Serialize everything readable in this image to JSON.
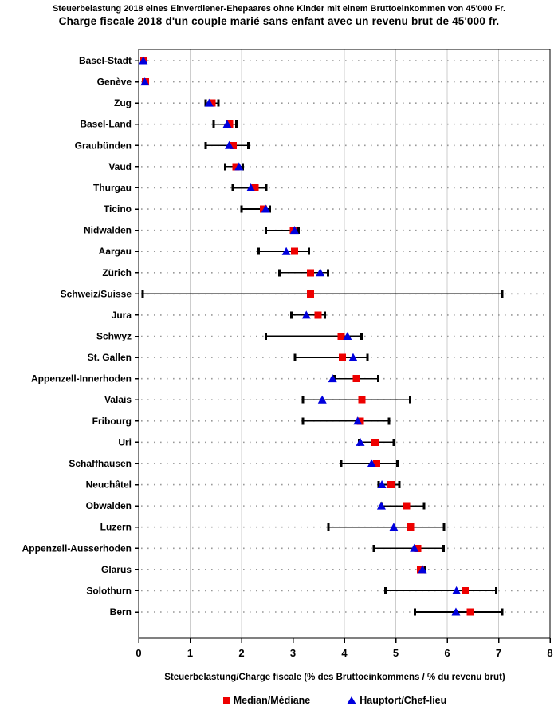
{
  "title_de": "Steuerbelastung 2018 eines Einverdiener-Ehepaares ohne Kinder mit einem Bruttoeinkommen von 45'000 Fr.",
  "title_fr": "Charge fiscale 2018 d'un couple marié sans enfant avec un revenu brut de 45'000 fr.",
  "legend": [
    {
      "label": "Median/Médiane",
      "marker": "square",
      "color": "#ee0000"
    },
    {
      "label": "Hauptort/Chef-lieu",
      "marker": "triangle",
      "color": "#0000dd"
    }
  ],
  "colors": {
    "median": "#ee0000",
    "hauptort": "#0000dd",
    "range_line": "#000000",
    "gridline": "#cdcdcd",
    "dotted_line": "#999999",
    "text": "#000000"
  },
  "chart_data": {
    "type": "scatter",
    "title": "Steuerbelastung 2018 / Charge fiscale 2018",
    "xlabel": "Steuerbelastung/Charge fiscale (% des Bruttoeinkommens / % du revenu brut)",
    "ylabel": "",
    "xlim": [
      0,
      8
    ],
    "xticks": [
      0,
      1,
      2,
      3,
      4,
      5,
      6,
      7,
      8
    ],
    "grid": "vertical-solid-plus-horizontal-dotted",
    "legend_position": "bottom",
    "categories": [
      "Basel-Stadt",
      "Genève",
      "Zug",
      "Basel-Land",
      "Graubünden",
      "Vaud",
      "Thurgau",
      "Ticino",
      "Nidwalden",
      "Aargau",
      "Zürich",
      "Schweiz/Suisse",
      "Jura",
      "Schwyz",
      "St. Gallen",
      "Appenzell-Innerhoden",
      "Valais",
      "Fribourg",
      "Uri",
      "Schaffhausen",
      "Neuchâtel",
      "Obwalden",
      "Luzern",
      "Appenzell-Ausserhoden",
      "Glarus",
      "Solothurn",
      "Bern"
    ],
    "series": [
      {
        "name": "Median/Médiane",
        "marker": "square",
        "color": "#ee0000",
        "values": [
          0.1,
          0.13,
          1.43,
          1.77,
          1.84,
          1.89,
          2.26,
          2.43,
          3.01,
          3.03,
          3.34,
          3.34,
          3.49,
          3.94,
          3.96,
          4.23,
          4.34,
          4.31,
          4.6,
          4.63,
          4.91,
          5.21,
          5.29,
          5.43,
          5.48,
          6.35,
          6.45
        ]
      },
      {
        "name": "Hauptort/Chef-lieu",
        "marker": "triangle",
        "color": "#0000dd",
        "values": [
          0.09,
          0.12,
          1.37,
          1.72,
          1.76,
          1.95,
          2.18,
          2.47,
          3.03,
          2.87,
          3.53,
          null,
          3.26,
          4.06,
          4.17,
          3.77,
          3.57,
          4.26,
          4.31,
          4.53,
          4.73,
          4.72,
          4.96,
          5.36,
          5.52,
          6.18,
          6.17
        ]
      }
    ],
    "ranges": [
      [
        0.06,
        0.14
      ],
      [
        0.1,
        0.16
      ],
      [
        1.3,
        1.55
      ],
      [
        1.46,
        1.9
      ],
      [
        1.3,
        2.13
      ],
      [
        1.68,
        2.02
      ],
      [
        1.83,
        2.48
      ],
      [
        2.0,
        2.55
      ],
      [
        2.47,
        3.11
      ],
      [
        2.33,
        3.31
      ],
      [
        2.74,
        3.68
      ],
      [
        0.08,
        7.07
      ],
      [
        2.97,
        3.62
      ],
      [
        2.47,
        4.33
      ],
      [
        3.04,
        4.45
      ],
      [
        3.81,
        4.66
      ],
      [
        3.19,
        5.28
      ],
      [
        3.19,
        4.87
      ],
      [
        4.29,
        4.96
      ],
      [
        3.94,
        5.03
      ],
      [
        4.67,
        5.07
      ],
      [
        4.72,
        5.55
      ],
      [
        3.69,
        5.94
      ],
      [
        4.57,
        5.93
      ],
      [
        5.44,
        5.57
      ],
      [
        4.8,
        6.95
      ],
      [
        5.37,
        7.07
      ]
    ]
  }
}
